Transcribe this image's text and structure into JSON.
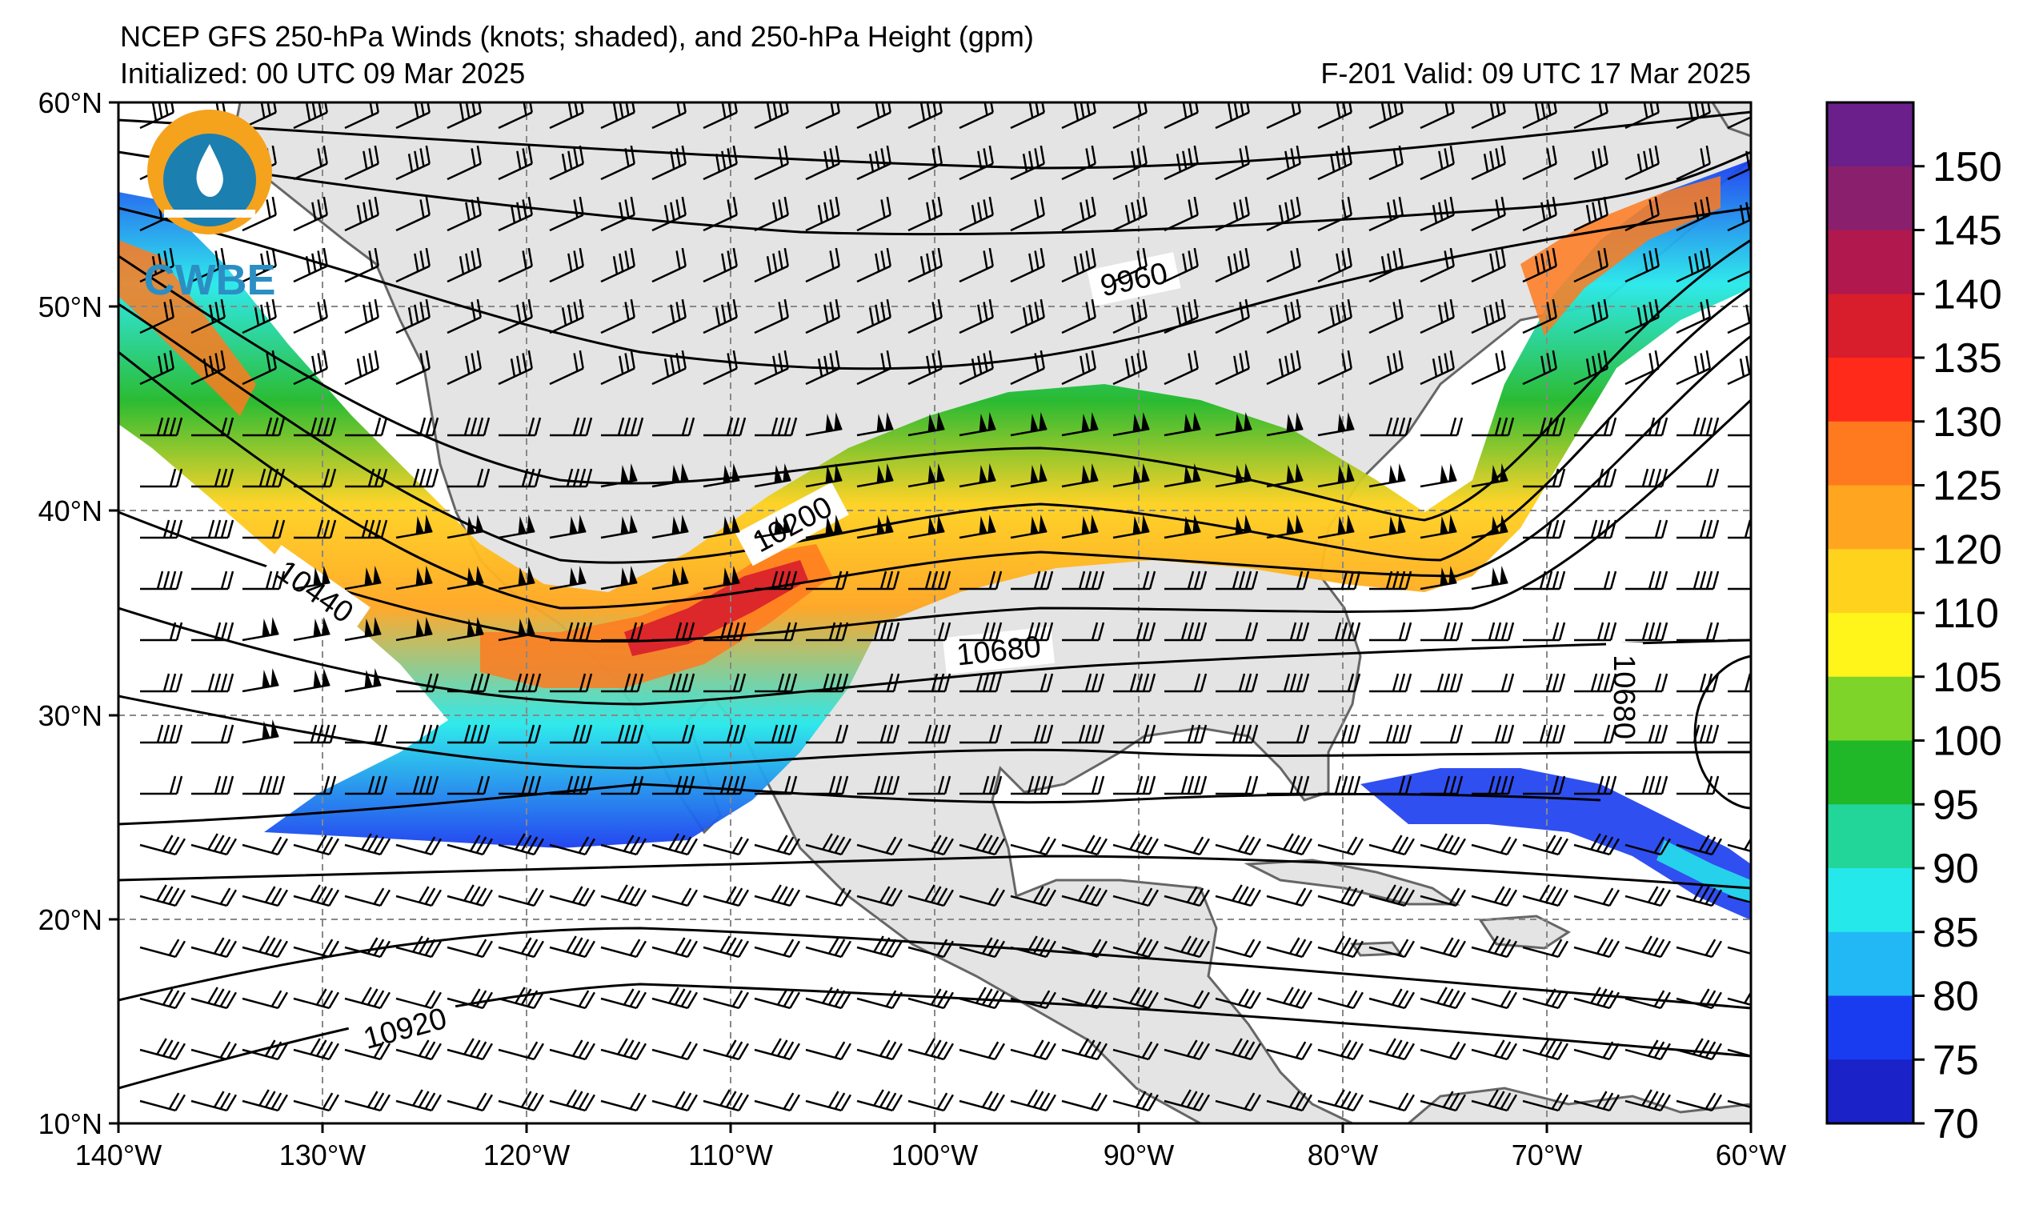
{
  "header": {
    "title": "NCEP GFS 250-hPa Winds (knots; shaded), and 250-hPa Height (gpm)",
    "initialized": "Initialized: 00 UTC 09 Mar 2025",
    "valid": "F-201  Valid: 09 UTC 17 Mar 2025"
  },
  "logo": {
    "text": "CWBE",
    "icon": "water-drop-logo-icon"
  },
  "axes": {
    "lat_labels": [
      "60°N",
      "50°N",
      "40°N",
      "30°N",
      "20°N",
      "10°N"
    ],
    "lon_labels": [
      "140°W",
      "130°W",
      "120°W",
      "110°W",
      "100°W",
      "90°W",
      "80°W",
      "70°W",
      "60°W"
    ],
    "lat_range": [
      10,
      60
    ],
    "lon_range": [
      -140,
      -60
    ]
  },
  "contour_labels": [
    "9960",
    "10200",
    "10440",
    "10680",
    "10680",
    "10920"
  ],
  "colorbar": {
    "levels": [
      "150",
      "145",
      "140",
      "135",
      "130",
      "125",
      "120",
      "110",
      "105",
      "100",
      "95",
      "90",
      "85",
      "80",
      "75",
      "70"
    ],
    "colors": [
      "#6a1f8a",
      "#8a1f6e",
      "#b0184e",
      "#d81d2c",
      "#ff2a1a",
      "#ff7a1e",
      "#ffa520",
      "#ffd21e",
      "#fff51a",
      "#7fd42a",
      "#20b828",
      "#22d69a",
      "#25e8ea",
      "#22b8f5",
      "#1a3cf0",
      "#1a22c8"
    ]
  },
  "colors": {
    "land": "#e4e4e4",
    "ocean": "#ffffff",
    "contour": "#000000",
    "grid": "#888888",
    "coast": "#666666"
  }
}
